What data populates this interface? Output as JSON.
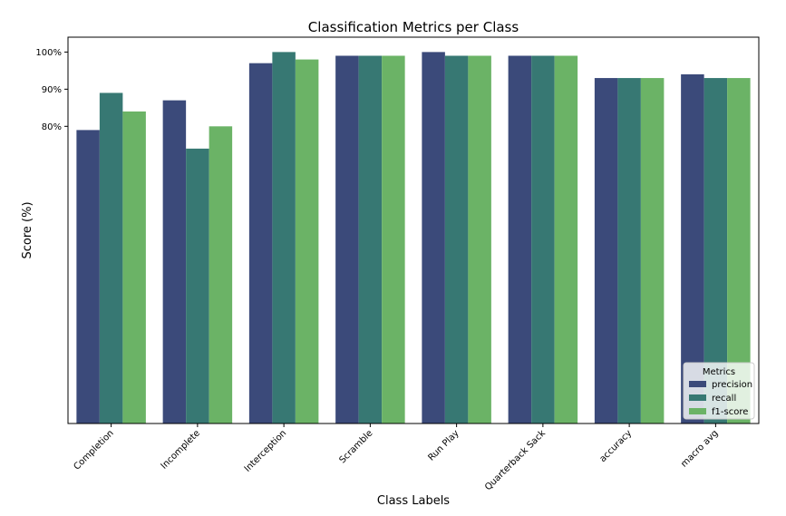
{
  "chart_data": {
    "type": "bar",
    "title": "Classification Metrics per Class",
    "xlabel": "Class Labels",
    "ylabel": "Score (%)",
    "categories": [
      "Completion",
      "Incomplete",
      "Interception",
      "Scramble",
      "Run Play",
      "Quarterback Sack",
      "accuracy",
      "macro avg"
    ],
    "series": [
      {
        "name": "precision",
        "values": [
          79,
          87,
          97,
          99,
          100,
          99,
          93,
          94
        ]
      },
      {
        "name": "recall",
        "values": [
          89,
          74,
          100,
          99,
          99,
          99,
          93,
          93
        ]
      },
      {
        "name": "f1-score",
        "values": [
          84,
          80,
          98,
          99,
          99,
          99,
          93,
          93
        ]
      }
    ],
    "y_ticks": [
      {
        "value": 80,
        "label": "80%"
      },
      {
        "value": 90,
        "label": "90%"
      },
      {
        "value": 100,
        "label": "100%"
      }
    ],
    "ylim": [
      0,
      104
    ],
    "legend": {
      "title": "Metrics",
      "position": "lower-right"
    },
    "colors": [
      "#3b4a7a",
      "#377873",
      "#6bb366"
    ],
    "grid": false
  }
}
